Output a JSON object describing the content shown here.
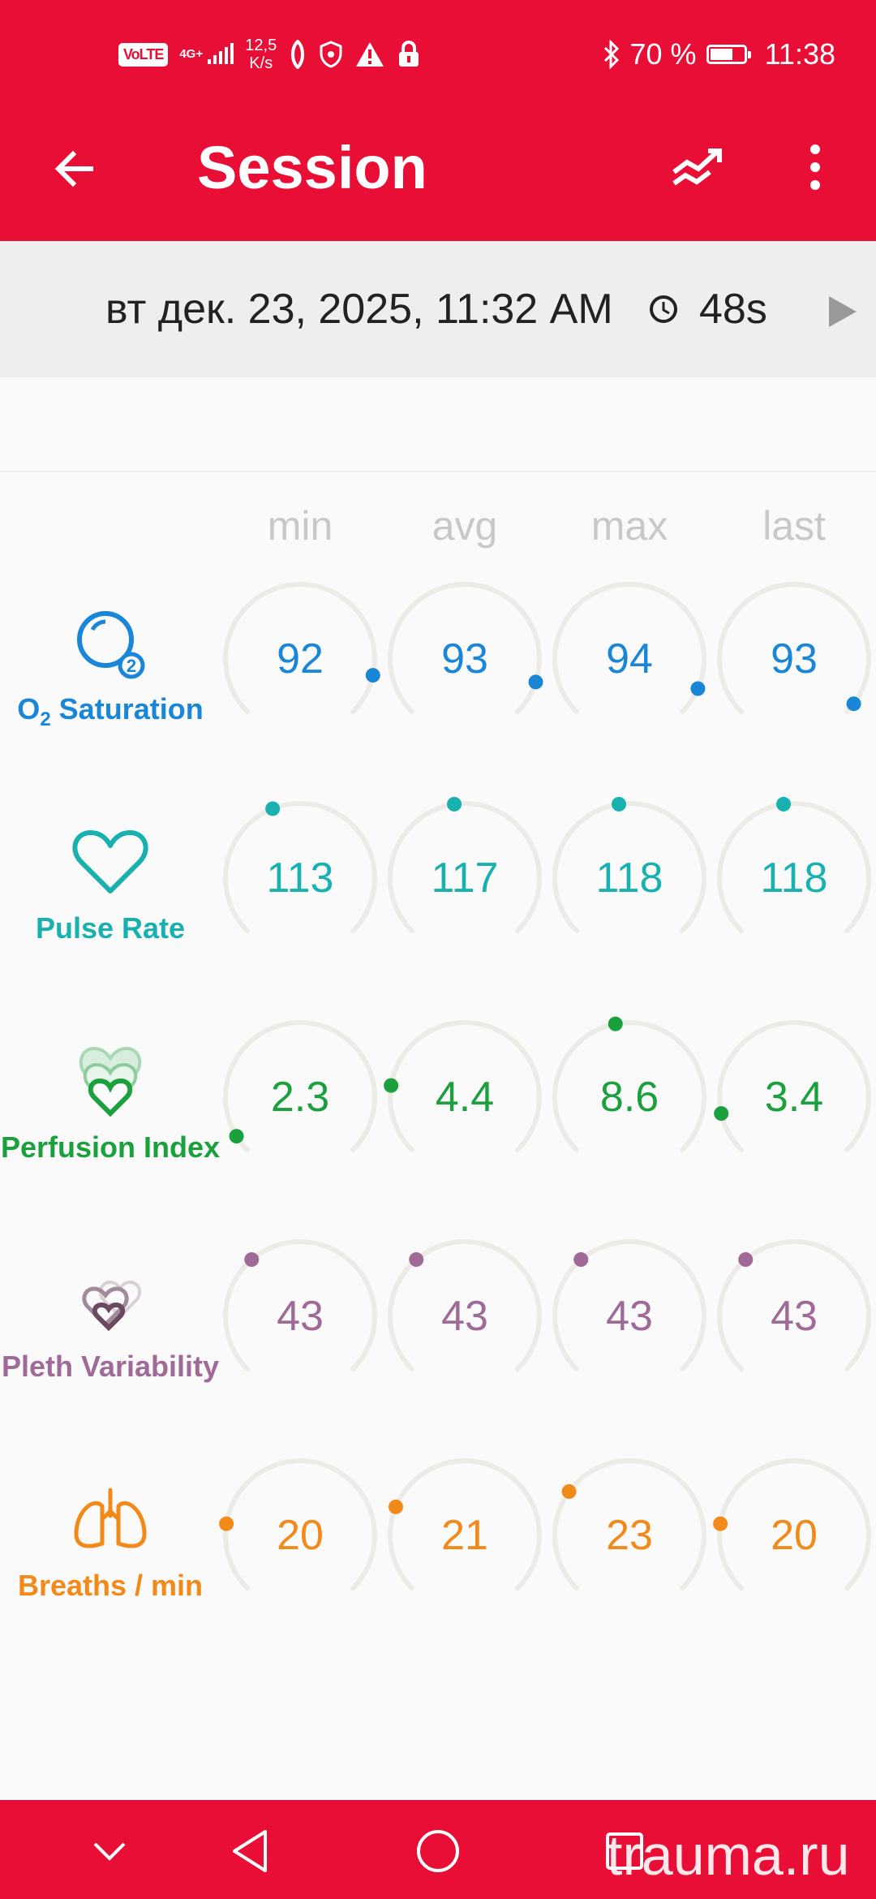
{
  "status_bar": {
    "volte": "VoLTE",
    "network": "4G+",
    "speed_value": "12,5",
    "speed_unit": "K/s",
    "battery": "70 %",
    "battery_level": 0.7,
    "time": "11:38"
  },
  "toolbar": {
    "title": "Session",
    "back_icon": "arrow-back-icon",
    "trend_icon": "trend-compare-icon",
    "more_icon": "more-vert-icon"
  },
  "session": {
    "date": "вт дек. 23, 2025, 11:32 AM",
    "duration": "48s",
    "clock_icon": "clock-icon",
    "play_icon": "play-icon"
  },
  "columns": [
    "min",
    "avg",
    "max",
    "last"
  ],
  "colors": {
    "accent": "#e90e35",
    "o2": "#1a86d8",
    "pulse": "#19b0b0",
    "perfusion": "#1aa03c",
    "pleth": "#a06a98",
    "breaths": "#f28a1a",
    "track": "#ecebe6"
  },
  "metrics": [
    {
      "id": "o2",
      "label_main": "O",
      "label_sub": "2",
      "label_rest": " Saturation",
      "icon": "o2-bubble-icon",
      "color": "#1a86d8",
      "values": [
        "92",
        "93",
        "94",
        "93"
      ],
      "levels": [
        0.88,
        0.9,
        0.92,
        0.97
      ]
    },
    {
      "id": "pulse",
      "label": "Pulse Rate",
      "icon": "heart-outline-icon",
      "color": "#19b0b0",
      "values": [
        "113",
        "117",
        "118",
        "118"
      ],
      "levels": [
        0.42,
        0.47,
        0.47,
        0.47
      ]
    },
    {
      "id": "perfusion",
      "label": "Perfusion Index",
      "icon": "layered-hearts-icon",
      "color": "#1aa03c",
      "values": [
        "2.3",
        "4.4",
        "8.6",
        "3.4"
      ],
      "levels": [
        0.05,
        0.2,
        0.46,
        0.12
      ]
    },
    {
      "id": "pleth",
      "label": "Pleth Variability",
      "icon": "pleth-hearts-icon",
      "color": "#a06a98",
      "values": [
        "43",
        "43",
        "43",
        "43"
      ],
      "levels": [
        0.35,
        0.35,
        0.35,
        0.35
      ]
    },
    {
      "id": "breaths",
      "label": "Breaths / min",
      "icon": "lungs-icon",
      "color": "#f28a1a",
      "values": [
        "20",
        "21",
        "23",
        "20"
      ],
      "levels": [
        0.2,
        0.25,
        0.3,
        0.2
      ]
    }
  ],
  "nav": {
    "hide_icon": "chevron-down-icon",
    "back_icon": "nav-back-icon",
    "home_icon": "nav-home-icon",
    "recents_icon": "nav-recents-icon"
  },
  "watermark": "trauma.ru"
}
